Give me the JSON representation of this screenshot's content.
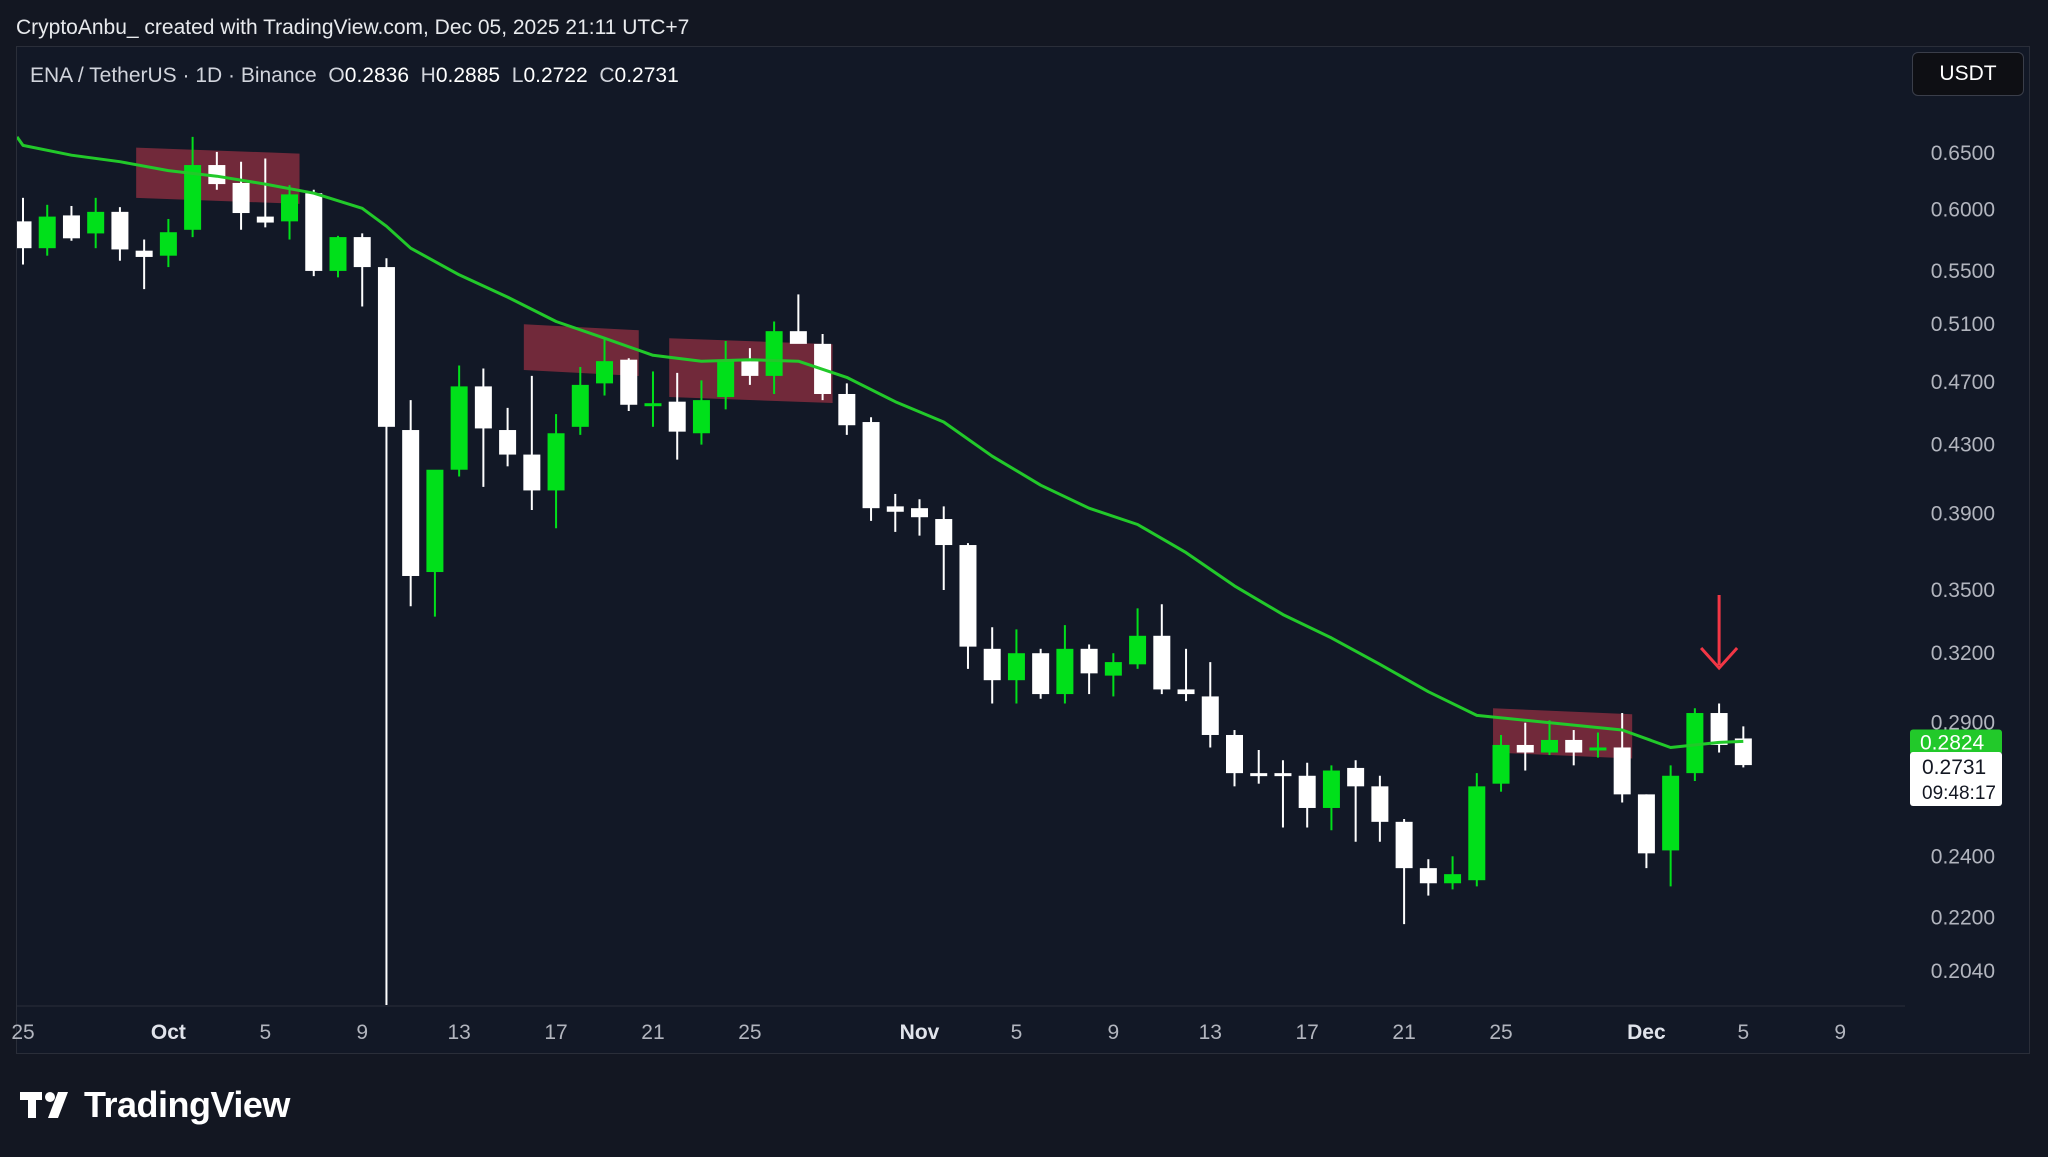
{
  "header": {
    "attribution": "CryptoAnbu_ created with TradingView.com, Dec 05, 2025 21:11 UTC+7"
  },
  "legend": {
    "symbol": "ENA / TetherUS · 1D · Binance",
    "open_label": "O",
    "open_value": "0.2836",
    "high_label": "H",
    "high_value": "0.2885",
    "low_label": "L",
    "low_value": "0.2722",
    "close_label": "C",
    "close_value": "0.2731"
  },
  "currency_button": "USDT",
  "price_labels": {
    "ema_value": "0.2824",
    "last_price": "0.2731",
    "countdown": "09:48:17"
  },
  "footer": {
    "brand": "TradingView"
  },
  "colors": {
    "background": "#121826",
    "up": "#00e01a",
    "down": "#ffffff",
    "ema": "#22c92a",
    "zone": "#c0394a",
    "arrow": "#f23645"
  },
  "chart_data": {
    "type": "candlestick",
    "y_scale": "log",
    "y_ticks": [
      "0.6500",
      "0.6000",
      "0.5500",
      "0.5100",
      "0.4700",
      "0.4300",
      "0.3900",
      "0.3500",
      "0.3200",
      "0.2900",
      "0.2400",
      "0.2200",
      "0.2040"
    ],
    "x_ticks": [
      {
        "label": "25",
        "date": "2025-09-25",
        "bold": false
      },
      {
        "label": "Oct",
        "date": "2025-10-01",
        "bold": true
      },
      {
        "label": "5",
        "date": "2025-10-05",
        "bold": false
      },
      {
        "label": "9",
        "date": "2025-10-09",
        "bold": false
      },
      {
        "label": "13",
        "date": "2025-10-13",
        "bold": false
      },
      {
        "label": "17",
        "date": "2025-10-17",
        "bold": false
      },
      {
        "label": "21",
        "date": "2025-10-21",
        "bold": false
      },
      {
        "label": "25",
        "date": "2025-10-25",
        "bold": false
      },
      {
        "label": "Nov",
        "date": "2025-11-01",
        "bold": true
      },
      {
        "label": "5",
        "date": "2025-11-05",
        "bold": false
      },
      {
        "label": "9",
        "date": "2025-11-09",
        "bold": false
      },
      {
        "label": "13",
        "date": "2025-11-13",
        "bold": false
      },
      {
        "label": "17",
        "date": "2025-11-17",
        "bold": false
      },
      {
        "label": "21",
        "date": "2025-11-21",
        "bold": false
      },
      {
        "label": "25",
        "date": "2025-11-25",
        "bold": false
      },
      {
        "label": "Dec",
        "date": "2025-12-01",
        "bold": true
      },
      {
        "label": "5",
        "date": "2025-12-05",
        "bold": false
      },
      {
        "label": "9",
        "date": "2025-12-09",
        "bold": false
      }
    ],
    "candles": [
      {
        "date": "2025-09-25",
        "o": 0.59,
        "h": 0.61,
        "l": 0.555,
        "c": 0.568
      },
      {
        "date": "2025-09-26",
        "o": 0.568,
        "h": 0.604,
        "l": 0.562,
        "c": 0.594
      },
      {
        "date": "2025-09-27",
        "o": 0.595,
        "h": 0.603,
        "l": 0.574,
        "c": 0.576
      },
      {
        "date": "2025-09-28",
        "o": 0.58,
        "h": 0.61,
        "l": 0.568,
        "c": 0.598
      },
      {
        "date": "2025-09-29",
        "o": 0.598,
        "h": 0.602,
        "l": 0.558,
        "c": 0.567
      },
      {
        "date": "2025-09-30",
        "o": 0.566,
        "h": 0.575,
        "l": 0.536,
        "c": 0.561
      },
      {
        "date": "2025-10-01",
        "o": 0.562,
        "h": 0.592,
        "l": 0.553,
        "c": 0.581
      },
      {
        "date": "2025-10-02",
        "o": 0.583,
        "h": 0.665,
        "l": 0.577,
        "c": 0.639
      },
      {
        "date": "2025-10-03",
        "o": 0.639,
        "h": 0.651,
        "l": 0.617,
        "c": 0.622
      },
      {
        "date": "2025-10-04",
        "o": 0.623,
        "h": 0.642,
        "l": 0.583,
        "c": 0.597
      },
      {
        "date": "2025-10-05",
        "o": 0.594,
        "h": 0.645,
        "l": 0.585,
        "c": 0.589
      },
      {
        "date": "2025-10-06",
        "o": 0.59,
        "h": 0.621,
        "l": 0.575,
        "c": 0.613
      },
      {
        "date": "2025-10-07",
        "o": 0.614,
        "h": 0.617,
        "l": 0.546,
        "c": 0.55
      },
      {
        "date": "2025-10-08",
        "o": 0.55,
        "h": 0.578,
        "l": 0.545,
        "c": 0.577
      },
      {
        "date": "2025-10-09",
        "o": 0.577,
        "h": 0.58,
        "l": 0.523,
        "c": 0.553
      },
      {
        "date": "2025-10-10",
        "o": 0.553,
        "h": 0.56,
        "l": 0.14,
        "c": 0.441
      },
      {
        "date": "2025-10-11",
        "o": 0.439,
        "h": 0.458,
        "l": 0.342,
        "c": 0.357
      },
      {
        "date": "2025-10-12",
        "o": 0.359,
        "h": 0.414,
        "l": 0.337,
        "c": 0.415
      },
      {
        "date": "2025-10-13",
        "o": 0.415,
        "h": 0.481,
        "l": 0.411,
        "c": 0.467
      },
      {
        "date": "2025-10-14",
        "o": 0.467,
        "h": 0.479,
        "l": 0.405,
        "c": 0.44
      },
      {
        "date": "2025-10-15",
        "o": 0.439,
        "h": 0.453,
        "l": 0.417,
        "c": 0.424
      },
      {
        "date": "2025-10-16",
        "o": 0.424,
        "h": 0.474,
        "l": 0.392,
        "c": 0.403
      },
      {
        "date": "2025-10-17",
        "o": 0.403,
        "h": 0.449,
        "l": 0.382,
        "c": 0.437
      },
      {
        "date": "2025-10-18",
        "o": 0.441,
        "h": 0.48,
        "l": 0.436,
        "c": 0.468
      },
      {
        "date": "2025-10-19",
        "o": 0.469,
        "h": 0.5,
        "l": 0.461,
        "c": 0.484
      },
      {
        "date": "2025-10-20",
        "o": 0.485,
        "h": 0.486,
        "l": 0.451,
        "c": 0.455
      },
      {
        "date": "2025-10-21",
        "o": 0.456,
        "h": 0.477,
        "l": 0.441,
        "c": 0.456
      },
      {
        "date": "2025-10-22",
        "o": 0.457,
        "h": 0.476,
        "l": 0.421,
        "c": 0.438
      },
      {
        "date": "2025-10-23",
        "o": 0.437,
        "h": 0.471,
        "l": 0.43,
        "c": 0.458
      },
      {
        "date": "2025-10-24",
        "o": 0.46,
        "h": 0.498,
        "l": 0.452,
        "c": 0.485
      },
      {
        "date": "2025-10-25",
        "o": 0.484,
        "h": 0.493,
        "l": 0.468,
        "c": 0.474
      },
      {
        "date": "2025-10-26",
        "o": 0.474,
        "h": 0.512,
        "l": 0.462,
        "c": 0.505
      },
      {
        "date": "2025-10-27",
        "o": 0.505,
        "h": 0.532,
        "l": 0.498,
        "c": 0.496
      },
      {
        "date": "2025-10-28",
        "o": 0.496,
        "h": 0.503,
        "l": 0.458,
        "c": 0.462
      },
      {
        "date": "2025-10-29",
        "o": 0.462,
        "h": 0.469,
        "l": 0.436,
        "c": 0.442
      },
      {
        "date": "2025-10-30",
        "o": 0.444,
        "h": 0.447,
        "l": 0.386,
        "c": 0.393
      },
      {
        "date": "2025-10-31",
        "o": 0.394,
        "h": 0.401,
        "l": 0.38,
        "c": 0.391
      },
      {
        "date": "2025-11-01",
        "o": 0.393,
        "h": 0.398,
        "l": 0.378,
        "c": 0.388
      },
      {
        "date": "2025-11-02",
        "o": 0.387,
        "h": 0.394,
        "l": 0.35,
        "c": 0.373
      },
      {
        "date": "2025-11-03",
        "o": 0.373,
        "h": 0.374,
        "l": 0.313,
        "c": 0.323
      },
      {
        "date": "2025-11-04",
        "o": 0.322,
        "h": 0.332,
        "l": 0.298,
        "c": 0.308
      },
      {
        "date": "2025-11-05",
        "o": 0.308,
        "h": 0.331,
        "l": 0.298,
        "c": 0.32
      },
      {
        "date": "2025-11-06",
        "o": 0.32,
        "h": 0.322,
        "l": 0.3,
        "c": 0.302
      },
      {
        "date": "2025-11-07",
        "o": 0.302,
        "h": 0.333,
        "l": 0.298,
        "c": 0.322
      },
      {
        "date": "2025-11-08",
        "o": 0.322,
        "h": 0.324,
        "l": 0.302,
        "c": 0.311
      },
      {
        "date": "2025-11-09",
        "o": 0.31,
        "h": 0.32,
        "l": 0.301,
        "c": 0.316
      },
      {
        "date": "2025-11-10",
        "o": 0.315,
        "h": 0.341,
        "l": 0.313,
        "c": 0.328
      },
      {
        "date": "2025-11-11",
        "o": 0.328,
        "h": 0.343,
        "l": 0.302,
        "c": 0.304
      },
      {
        "date": "2025-11-12",
        "o": 0.304,
        "h": 0.322,
        "l": 0.299,
        "c": 0.302
      },
      {
        "date": "2025-11-13",
        "o": 0.301,
        "h": 0.316,
        "l": 0.28,
        "c": 0.285
      },
      {
        "date": "2025-11-14",
        "o": 0.285,
        "h": 0.287,
        "l": 0.265,
        "c": 0.27
      },
      {
        "date": "2025-11-15",
        "o": 0.27,
        "h": 0.279,
        "l": 0.266,
        "c": 0.269
      },
      {
        "date": "2025-11-16",
        "o": 0.27,
        "h": 0.275,
        "l": 0.25,
        "c": 0.269
      },
      {
        "date": "2025-11-17",
        "o": 0.269,
        "h": 0.274,
        "l": 0.25,
        "c": 0.257
      },
      {
        "date": "2025-11-18",
        "o": 0.257,
        "h": 0.273,
        "l": 0.249,
        "c": 0.271
      },
      {
        "date": "2025-11-19",
        "o": 0.272,
        "h": 0.275,
        "l": 0.245,
        "c": 0.265
      },
      {
        "date": "2025-11-20",
        "o": 0.265,
        "h": 0.269,
        "l": 0.245,
        "c": 0.252
      },
      {
        "date": "2025-11-21",
        "o": 0.252,
        "h": 0.253,
        "l": 0.218,
        "c": 0.236
      },
      {
        "date": "2025-11-22",
        "o": 0.236,
        "h": 0.239,
        "l": 0.227,
        "c": 0.231
      },
      {
        "date": "2025-11-23",
        "o": 0.231,
        "h": 0.24,
        "l": 0.229,
        "c": 0.234
      },
      {
        "date": "2025-11-24",
        "o": 0.232,
        "h": 0.27,
        "l": 0.23,
        "c": 0.265
      },
      {
        "date": "2025-11-25",
        "o": 0.266,
        "h": 0.285,
        "l": 0.263,
        "c": 0.281
      },
      {
        "date": "2025-11-26",
        "o": 0.281,
        "h": 0.29,
        "l": 0.271,
        "c": 0.278
      },
      {
        "date": "2025-11-27",
        "o": 0.278,
        "h": 0.291,
        "l": 0.277,
        "c": 0.283
      },
      {
        "date": "2025-11-28",
        "o": 0.283,
        "h": 0.287,
        "l": 0.273,
        "c": 0.278
      },
      {
        "date": "2025-11-29",
        "o": 0.279,
        "h": 0.286,
        "l": 0.276,
        "c": 0.28
      },
      {
        "date": "2025-11-30",
        "o": 0.28,
        "h": 0.294,
        "l": 0.259,
        "c": 0.262
      },
      {
        "date": "2025-12-01",
        "o": 0.262,
        "h": 0.262,
        "l": 0.236,
        "c": 0.241
      },
      {
        "date": "2025-12-02",
        "o": 0.242,
        "h": 0.273,
        "l": 0.23,
        "c": 0.269
      },
      {
        "date": "2025-12-03",
        "o": 0.27,
        "h": 0.296,
        "l": 0.267,
        "c": 0.294
      },
      {
        "date": "2025-12-04",
        "o": 0.294,
        "h": 0.298,
        "l": 0.278,
        "c": 0.281
      },
      {
        "date": "2025-12-05",
        "o": 0.2836,
        "h": 0.2885,
        "l": 0.2722,
        "c": 0.2731
      }
    ],
    "ema": [
      {
        "date": "2025-09-25",
        "v": 0.657
      },
      {
        "date": "2025-09-27",
        "v": 0.648
      },
      {
        "date": "2025-09-29",
        "v": 0.642
      },
      {
        "date": "2025-10-01",
        "v": 0.634
      },
      {
        "date": "2025-10-03",
        "v": 0.629
      },
      {
        "date": "2025-10-05",
        "v": 0.622
      },
      {
        "date": "2025-10-07",
        "v": 0.614
      },
      {
        "date": "2025-10-09",
        "v": 0.601
      },
      {
        "date": "2025-10-10",
        "v": 0.586
      },
      {
        "date": "2025-10-11",
        "v": 0.568
      },
      {
        "date": "2025-10-13",
        "v": 0.547
      },
      {
        "date": "2025-10-15",
        "v": 0.53
      },
      {
        "date": "2025-10-17",
        "v": 0.512
      },
      {
        "date": "2025-10-19",
        "v": 0.5
      },
      {
        "date": "2025-10-21",
        "v": 0.488
      },
      {
        "date": "2025-10-23",
        "v": 0.484
      },
      {
        "date": "2025-10-25",
        "v": 0.485
      },
      {
        "date": "2025-10-27",
        "v": 0.484
      },
      {
        "date": "2025-10-29",
        "v": 0.473
      },
      {
        "date": "2025-10-31",
        "v": 0.457
      },
      {
        "date": "2025-11-02",
        "v": 0.444
      },
      {
        "date": "2025-11-04",
        "v": 0.423
      },
      {
        "date": "2025-11-06",
        "v": 0.406
      },
      {
        "date": "2025-11-08",
        "v": 0.393
      },
      {
        "date": "2025-11-10",
        "v": 0.384
      },
      {
        "date": "2025-11-12",
        "v": 0.369
      },
      {
        "date": "2025-11-14",
        "v": 0.352
      },
      {
        "date": "2025-11-16",
        "v": 0.338
      },
      {
        "date": "2025-11-18",
        "v": 0.327
      },
      {
        "date": "2025-11-20",
        "v": 0.315
      },
      {
        "date": "2025-11-22",
        "v": 0.303
      },
      {
        "date": "2025-11-24",
        "v": 0.293
      },
      {
        "date": "2025-11-26",
        "v": 0.291
      },
      {
        "date": "2025-11-28",
        "v": 0.289
      },
      {
        "date": "2025-11-30",
        "v": 0.287
      },
      {
        "date": "2025-12-02",
        "v": 0.28
      },
      {
        "date": "2025-12-04",
        "v": 0.282
      },
      {
        "date": "2025-12-05",
        "v": 0.2824
      }
    ],
    "resistance_zones": [
      {
        "from": "2025-09-30",
        "to": "2025-10-06",
        "bottom_price": 0.61,
        "top_price": 0.655
      },
      {
        "from": "2025-10-16",
        "to": "2025-10-20",
        "bottom_price": 0.478,
        "top_price": 0.51
      },
      {
        "from": "2025-10-22",
        "to": "2025-10-28",
        "bottom_price": 0.46,
        "top_price": 0.5
      },
      {
        "from": "2025-11-25",
        "to": "2025-11-30",
        "bottom_price": 0.278,
        "top_price": 0.296
      }
    ],
    "arrow_marker": {
      "date": "2025-12-04",
      "price": 0.33
    }
  }
}
